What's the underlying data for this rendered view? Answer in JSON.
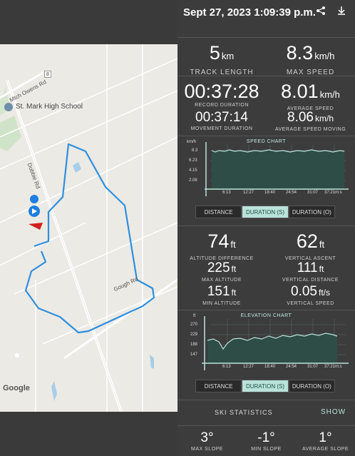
{
  "header": {
    "title": "Sept 27, 2023 1:09:39 p.m.",
    "share_icon": "share-icon",
    "download_icon": "download-icon"
  },
  "stats_top": {
    "track_length": {
      "value": "5",
      "unit": "km",
      "label": "TRACK LENGTH"
    },
    "max_speed": {
      "value": "8.3",
      "unit": "km/h",
      "label": "MAX SPEED"
    }
  },
  "stats_time": {
    "record_duration": {
      "value": "00:37:28",
      "label": "RECORD DURATION"
    },
    "average_speed": {
      "value": "8.01",
      "unit": "km/h",
      "label": "AVERAGE SPEED"
    },
    "movement_duration": {
      "value": "00:37:14",
      "label": "MOVEMENT DURATION"
    },
    "average_speed_moving": {
      "value": "8.06",
      "unit": "km/h",
      "label": "AVERAGE SPEED MOVING"
    }
  },
  "speed_chart": {
    "title": "SPEED CHART",
    "y_unit": "km/h",
    "y_ticks": [
      "8.3",
      "6.23",
      "4.15",
      "2.08"
    ],
    "x_ticks": [
      "6:13",
      "12:27",
      "18:40",
      "24:54",
      "31:07",
      "37:21m:s"
    ]
  },
  "speed_tabs": [
    "DISTANCE",
    "DURATION (S)",
    "DURATION (O)"
  ],
  "stats_alt": {
    "altitude_difference": {
      "value": "74",
      "unit": "ft",
      "label": "ALTITUDE DIFFERENCE"
    },
    "vertical_ascent": {
      "value": "62",
      "unit": "ft",
      "label": "VERTICAL ASCENT"
    },
    "max_altitude": {
      "value": "225",
      "unit": "ft",
      "label": "MAX ALTITUDE"
    },
    "vertical_distance": {
      "value": "111",
      "unit": "ft",
      "label": "VERTICAL DISTANCE"
    },
    "min_altitude": {
      "value": "151",
      "unit": "ft",
      "label": "MIN ALTITUDE"
    },
    "vertical_speed": {
      "value": "0.05",
      "unit": "ft/s",
      "label": "VERTICAL SPEED"
    }
  },
  "elevation_chart": {
    "title": "ELEVATION CHART",
    "y_unit": "ft",
    "y_ticks": [
      "270",
      "229",
      "188",
      "147"
    ],
    "x_ticks": [
      "6:13",
      "12:27",
      "18:40",
      "24:54",
      "31:07",
      "37:21m:s"
    ]
  },
  "elevation_tabs": [
    "DISTANCE",
    "DURATION (S)",
    "DURATION (O)"
  ],
  "ski": {
    "title": "SKI STATISTICS",
    "show_label": "SHOW"
  },
  "slopes": {
    "max_slope": {
      "value": "3°",
      "label": "MAX SLOPE"
    },
    "min_slope": {
      "value": "-1°",
      "label": "MIN SLOPE"
    },
    "average_slope": {
      "value": "1°",
      "label": "AVERAGE SLOPE"
    }
  },
  "map": {
    "road_label_1": "Mtch Owens Rd",
    "road_label_2": "Dobbie Rd",
    "road_label_3": "Gough Rd",
    "place_label": "St. Mark High School",
    "road_number": "8",
    "google_logo": "Google",
    "track_color": "#2d8fe0"
  }
}
